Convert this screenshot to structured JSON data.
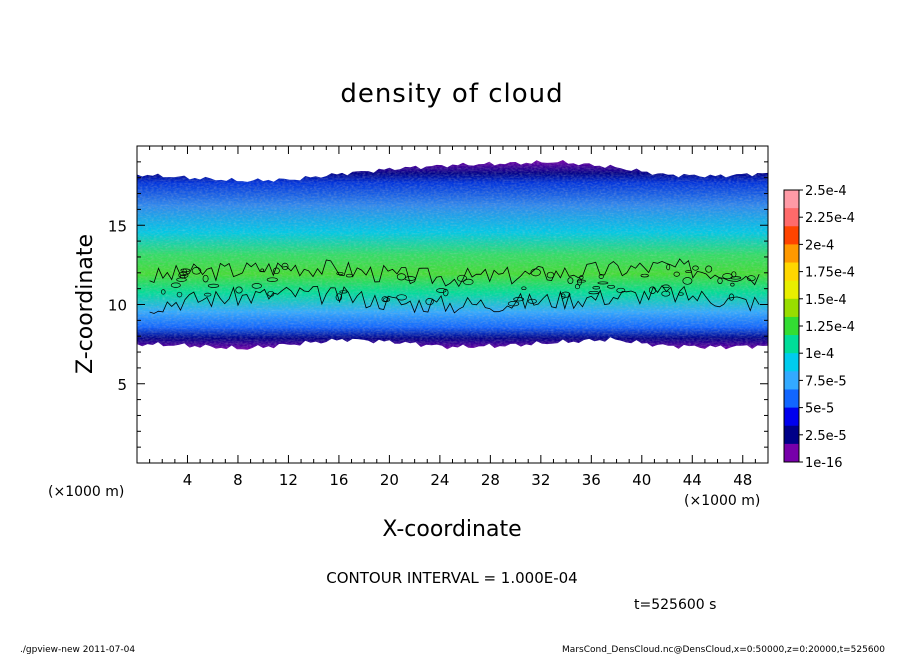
{
  "chart_data": {
    "type": "heatmap",
    "title": "density of cloud",
    "xlabel": "X-coordinate",
    "ylabel": "Z-coordinate",
    "x_unit": "(×1000 m)",
    "y_unit": "(×1000 m)",
    "xlim": [
      0,
      50
    ],
    "ylim": [
      0,
      20
    ],
    "x_ticks": [
      4,
      8,
      12,
      16,
      20,
      24,
      28,
      32,
      36,
      40,
      44,
      48
    ],
    "y_ticks": [
      5,
      10,
      15
    ],
    "colorbar": {
      "labels": [
        "2.5e-4",
        "2.25e-4",
        "2e-4",
        "1.75e-4",
        "1.5e-4",
        "1.25e-4",
        "1e-4",
        "7.5e-5",
        "5e-5",
        "2.5e-5",
        "1e-16"
      ],
      "colors": [
        "#ff9aa6",
        "#ff6a6a",
        "#ff4400",
        "#ff9900",
        "#ffd700",
        "#e8ee00",
        "#99dd00",
        "#33dd33",
        "#00dd99",
        "#00ccee",
        "#33aaff",
        "#1166ff",
        "#0000ee",
        "#000088",
        "#7700aa"
      ]
    },
    "contour_interval": "CONTOUR INTERVAL = 1.000E-04",
    "time": "t=525600 s",
    "cloud_layer": {
      "top_km": [
        18.2,
        18.0,
        17.8,
        17.9,
        18.3,
        18.6,
        18.8,
        18.9,
        19.0,
        18.7,
        18.2,
        18.1,
        18.3
      ],
      "bottom_km": [
        7.5,
        7.4,
        7.2,
        7.5,
        7.8,
        7.6,
        7.3,
        7.4,
        7.6,
        7.8,
        7.4,
        7.3,
        7.4
      ],
      "peak_km": [
        10.8,
        11.2,
        11.4,
        11.6,
        11.4,
        11.0,
        10.9,
        11.0,
        11.2,
        11.4,
        11.6,
        11.3,
        10.9
      ]
    }
  },
  "footer": {
    "left": "./gpview-new  2011-07-04",
    "right": "MarsCond_DensCloud.nc@DensCloud,x=0:50000,z=0:20000,t=525600"
  }
}
